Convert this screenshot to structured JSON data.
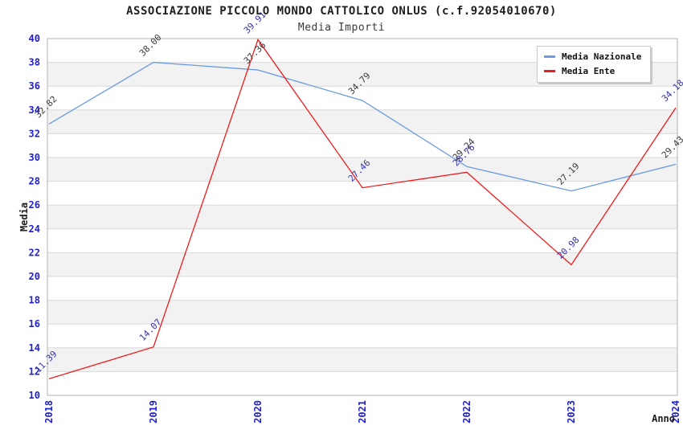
{
  "chart_data": {
    "type": "line",
    "title": "ASSOCIAZIONE PICCOLO MONDO CATTOLICO ONLUS (c.f.92054010670)",
    "subtitle": "Media Importi",
    "xlabel": "Anno",
    "ylabel": "Media",
    "categories": [
      "2018",
      "2019",
      "2020",
      "2021",
      "2022",
      "2023",
      "2024"
    ],
    "series": [
      {
        "name": "Media Nazionale",
        "color": "#6a9be0",
        "label_color": "#3a3a3a",
        "values": [
          32.82,
          38.0,
          37.36,
          34.79,
          29.24,
          27.19,
          29.43
        ]
      },
      {
        "name": "Media Ente",
        "color": "#ee1c1c",
        "label_color": "#3434ad",
        "values": [
          11.39,
          14.07,
          39.91,
          27.46,
          28.76,
          20.98,
          34.18
        ]
      }
    ],
    "ylim": [
      10,
      40
    ],
    "ytick_step": 2,
    "grid": "horizontal",
    "legend_position": "top-right",
    "colors": {
      "tick_label": "#2222cc",
      "grid_line": "#dadada",
      "plot_border": "#b0b0b0",
      "band": "#f2f2f2"
    }
  }
}
